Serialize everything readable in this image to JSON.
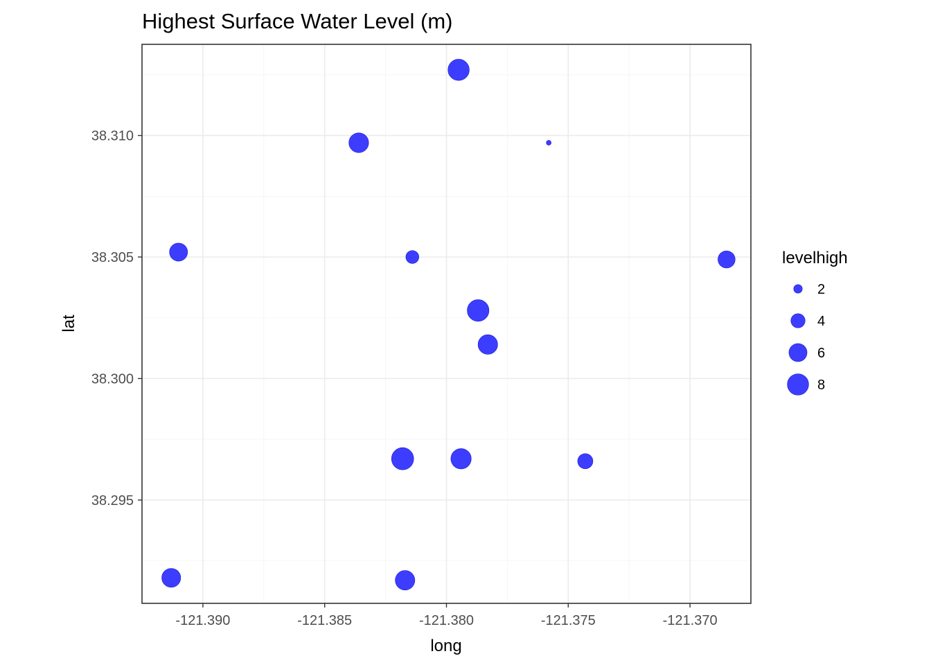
{
  "chart_data": {
    "type": "scatter",
    "title": "Highest Surface Water Level (m)",
    "xlabel": "long",
    "ylabel": "lat",
    "xlim": [
      -121.3925,
      -121.3675
    ],
    "ylim": [
      38.29075,
      38.31375
    ],
    "x_ticks": [
      -121.39,
      -121.385,
      -121.38,
      -121.375,
      -121.37
    ],
    "x_tick_labels": [
      "-121.390",
      "-121.385",
      "-121.380",
      "-121.375",
      "-121.370"
    ],
    "y_ticks": [
      38.295,
      38.3,
      38.305,
      38.31
    ],
    "y_tick_labels": [
      "38.295",
      "38.300",
      "38.305",
      "38.310"
    ],
    "grid": true,
    "point_color": "#3333ff",
    "size_variable": "levelhigh",
    "legend": {
      "title": "levelhigh",
      "placement": "right",
      "entries": [
        {
          "label": "2",
          "value": 2
        },
        {
          "label": "4",
          "value": 4
        },
        {
          "label": "6",
          "value": 6
        },
        {
          "label": "8",
          "value": 8
        }
      ]
    },
    "size_range": [
      1.2,
      8.6
    ],
    "points": [
      {
        "x": -121.3795,
        "y": 38.3127,
        "levelhigh": 8.0
      },
      {
        "x": -121.3836,
        "y": 38.3097,
        "levelhigh": 7.0
      },
      {
        "x": -121.3758,
        "y": 38.3097,
        "levelhigh": 1.2
      },
      {
        "x": -121.391,
        "y": 38.3052,
        "levelhigh": 6.0
      },
      {
        "x": -121.3814,
        "y": 38.305,
        "levelhigh": 3.5
      },
      {
        "x": -121.3685,
        "y": 38.3049,
        "levelhigh": 5.5
      },
      {
        "x": -121.3787,
        "y": 38.3028,
        "levelhigh": 8.3
      },
      {
        "x": -121.3783,
        "y": 38.3014,
        "levelhigh": 6.9
      },
      {
        "x": -121.3818,
        "y": 38.2967,
        "levelhigh": 8.6
      },
      {
        "x": -121.3794,
        "y": 38.2967,
        "levelhigh": 7.4
      },
      {
        "x": -121.3743,
        "y": 38.2966,
        "levelhigh": 4.5
      },
      {
        "x": -121.3913,
        "y": 38.2918,
        "levelhigh": 6.5
      },
      {
        "x": -121.3817,
        "y": 38.2917,
        "levelhigh": 6.9
      }
    ]
  }
}
